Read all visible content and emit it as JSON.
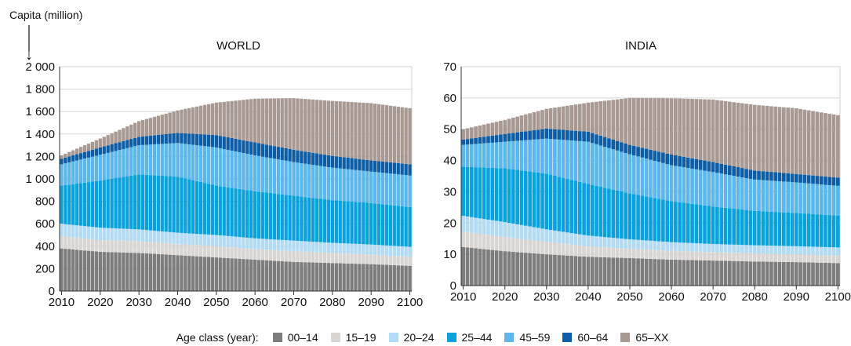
{
  "global": {
    "y_axis_note": "Capita (million)",
    "arrow_glyph": "↓"
  },
  "legend": {
    "label": "Age class (year):",
    "items": [
      {
        "name": "00–14",
        "color": "#7d7d7d"
      },
      {
        "name": "15–19",
        "color": "#d9d5d2"
      },
      {
        "name": "20–24",
        "color": "#b3dcf4"
      },
      {
        "name": "25–44",
        "color": "#0aa2dc"
      },
      {
        "name": "45–59",
        "color": "#5cb7ea"
      },
      {
        "name": "60–64",
        "color": "#0d5ea6"
      },
      {
        "name": "65–XX",
        "color": "#a89a92"
      }
    ]
  },
  "chart_data": [
    {
      "type": "bar",
      "stacked": true,
      "title": "WORLD",
      "x_start": 2010,
      "x_end": 2100,
      "x_step": 1,
      "xticks": [
        "2010",
        "2020",
        "2030",
        "2040",
        "2050",
        "2060",
        "2070",
        "2080",
        "2090",
        "2100"
      ],
      "ylim": [
        0,
        2000
      ],
      "yticks": [
        "0",
        "200",
        "400",
        "600",
        "800",
        "1 000",
        "1 200",
        "1 400",
        "1 600",
        "1 800",
        "2 000"
      ],
      "grid": true,
      "series_keyframes": {
        "00–14": [
          [
            2010,
            380
          ],
          [
            2020,
            350
          ],
          [
            2030,
            340
          ],
          [
            2040,
            320
          ],
          [
            2050,
            300
          ],
          [
            2060,
            280
          ],
          [
            2070,
            260
          ],
          [
            2080,
            250
          ],
          [
            2090,
            240
          ],
          [
            2100,
            225
          ]
        ],
        "15–19": [
          [
            2010,
            110
          ],
          [
            2020,
            105
          ],
          [
            2030,
            105
          ],
          [
            2040,
            100
          ],
          [
            2050,
            100
          ],
          [
            2060,
            95
          ],
          [
            2070,
            95
          ],
          [
            2080,
            90
          ],
          [
            2090,
            85
          ],
          [
            2100,
            80
          ]
        ],
        "20–24": [
          [
            2010,
            110
          ],
          [
            2020,
            110
          ],
          [
            2030,
            105
          ],
          [
            2040,
            100
          ],
          [
            2050,
            100
          ],
          [
            2060,
            95
          ],
          [
            2070,
            95
          ],
          [
            2080,
            90
          ],
          [
            2090,
            90
          ],
          [
            2100,
            90
          ]
        ],
        "25–44": [
          [
            2010,
            340
          ],
          [
            2020,
            420
          ],
          [
            2030,
            490
          ],
          [
            2040,
            500
          ],
          [
            2050,
            440
          ],
          [
            2060,
            420
          ],
          [
            2070,
            400
          ],
          [
            2080,
            380
          ],
          [
            2090,
            370
          ],
          [
            2100,
            355
          ]
        ],
        "45–59": [
          [
            2010,
            190
          ],
          [
            2020,
            230
          ],
          [
            2030,
            260
          ],
          [
            2040,
            300
          ],
          [
            2050,
            340
          ],
          [
            2060,
            320
          ],
          [
            2070,
            300
          ],
          [
            2080,
            290
          ],
          [
            2090,
            280
          ],
          [
            2100,
            280
          ]
        ],
        "60–64": [
          [
            2010,
            50
          ],
          [
            2020,
            65
          ],
          [
            2030,
            75
          ],
          [
            2040,
            90
          ],
          [
            2050,
            110
          ],
          [
            2060,
            115
          ],
          [
            2070,
            110
          ],
          [
            2080,
            105
          ],
          [
            2090,
            100
          ],
          [
            2100,
            100
          ]
        ],
        "65–XX": [
          [
            2010,
            30
          ],
          [
            2020,
            80
          ],
          [
            2030,
            140
          ],
          [
            2040,
            200
          ],
          [
            2050,
            290
          ],
          [
            2060,
            390
          ],
          [
            2070,
            460
          ],
          [
            2080,
            490
          ],
          [
            2090,
            510
          ],
          [
            2100,
            500
          ]
        ]
      }
    },
    {
      "type": "bar",
      "stacked": true,
      "title": "INDIA",
      "x_start": 2010,
      "x_end": 2100,
      "x_step": 1,
      "xticks": [
        "2010",
        "2020",
        "2030",
        "2040",
        "2050",
        "2060",
        "2070",
        "2080",
        "2090",
        "2100"
      ],
      "ylim": [
        0,
        70
      ],
      "yticks": [
        "0",
        "10",
        "20",
        "30",
        "40",
        "50",
        "60",
        "70"
      ],
      "grid": true,
      "series_keyframes": {
        "00–14": [
          [
            2010,
            12.3
          ],
          [
            2020,
            11
          ],
          [
            2030,
            10
          ],
          [
            2040,
            9.2
          ],
          [
            2050,
            8.8
          ],
          [
            2060,
            8.3
          ],
          [
            2070,
            8
          ],
          [
            2080,
            7.7
          ],
          [
            2090,
            7.5
          ],
          [
            2100,
            7.2
          ]
        ],
        "15–19": [
          [
            2010,
            5
          ],
          [
            2020,
            4.5
          ],
          [
            2030,
            4
          ],
          [
            2040,
            3.3
          ],
          [
            2050,
            3
          ],
          [
            2060,
            2.8
          ],
          [
            2070,
            2.7
          ],
          [
            2080,
            2.6
          ],
          [
            2090,
            2.5
          ],
          [
            2100,
            2.4
          ]
        ],
        "20–24": [
          [
            2010,
            5
          ],
          [
            2020,
            4.8
          ],
          [
            2030,
            4
          ],
          [
            2040,
            3.5
          ],
          [
            2050,
            3
          ],
          [
            2060,
            2.8
          ],
          [
            2070,
            2.6
          ],
          [
            2080,
            2.6
          ],
          [
            2090,
            2.6
          ],
          [
            2100,
            2.6
          ]
        ],
        "25–44": [
          [
            2010,
            15.7
          ],
          [
            2020,
            17.2
          ],
          [
            2030,
            17.8
          ],
          [
            2040,
            16.5
          ],
          [
            2050,
            14.7
          ],
          [
            2060,
            13.1
          ],
          [
            2070,
            12
          ],
          [
            2080,
            11
          ],
          [
            2090,
            10.6
          ],
          [
            2100,
            10.2
          ]
        ],
        "45–59": [
          [
            2010,
            7
          ],
          [
            2020,
            8.5
          ],
          [
            2030,
            11.2
          ],
          [
            2040,
            13.5
          ],
          [
            2050,
            12.5
          ],
          [
            2060,
            11.5
          ],
          [
            2070,
            11
          ],
          [
            2080,
            10
          ],
          [
            2090,
            9.8
          ],
          [
            2100,
            9.5
          ]
        ],
        "60–64": [
          [
            2010,
            1.7
          ],
          [
            2020,
            2.5
          ],
          [
            2030,
            3.2
          ],
          [
            2040,
            3.2
          ],
          [
            2050,
            3
          ],
          [
            2060,
            3.4
          ],
          [
            2070,
            3.2
          ],
          [
            2080,
            2.9
          ],
          [
            2090,
            2.7
          ],
          [
            2100,
            2.6
          ]
        ],
        "65–XX": [
          [
            2010,
            3.3
          ],
          [
            2020,
            4.5
          ],
          [
            2030,
            6.3
          ],
          [
            2040,
            9.3
          ],
          [
            2050,
            15
          ],
          [
            2060,
            18
          ],
          [
            2070,
            20
          ],
          [
            2080,
            21
          ],
          [
            2090,
            21
          ],
          [
            2100,
            20
          ]
        ]
      }
    }
  ]
}
